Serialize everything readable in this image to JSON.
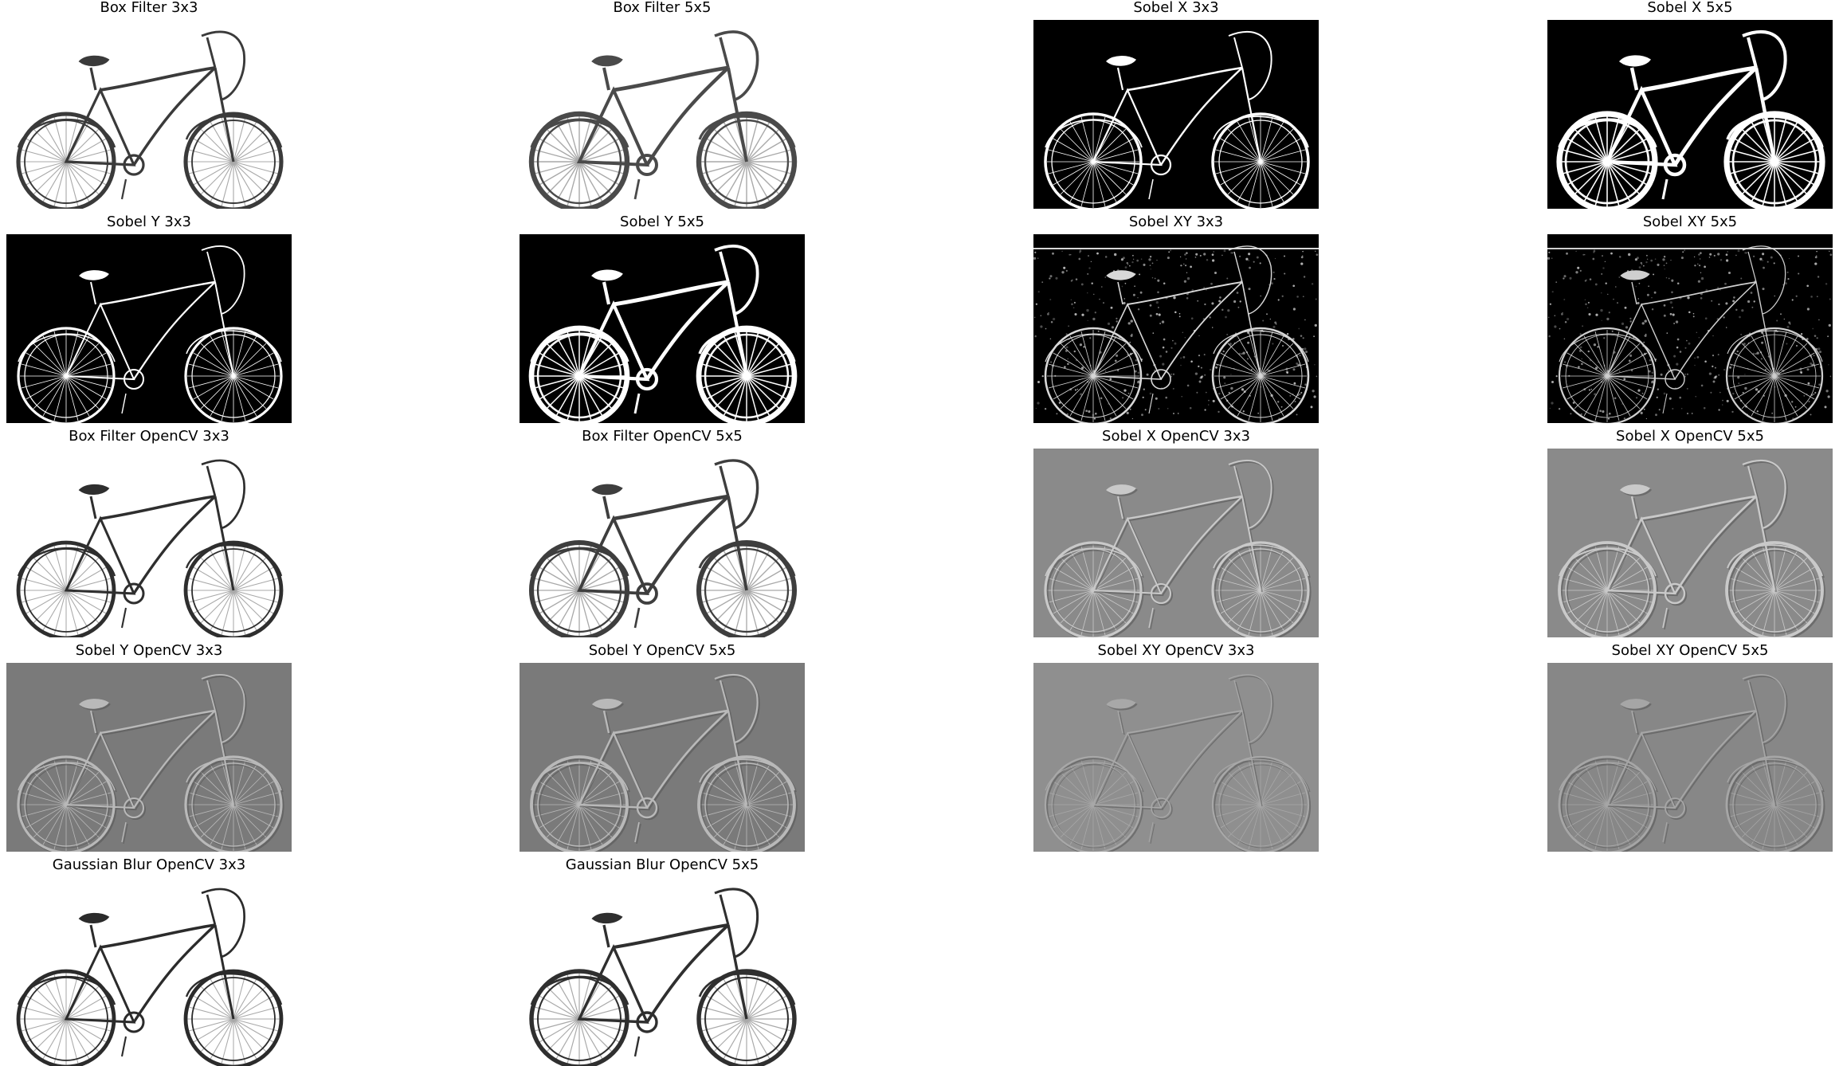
{
  "figure": {
    "background": "#ffffff",
    "panels": [
      {
        "title": "Box Filter 3x3",
        "style": "blur",
        "tone": "#ffffff",
        "stroke": "#3a3a3a",
        "sw": 3.2
      },
      {
        "title": "Box Filter 5x5",
        "style": "blur",
        "tone": "#ffffff",
        "stroke": "#4a4a4a",
        "sw": 4.0
      },
      {
        "title": "Sobel X 3x3",
        "style": "edge",
        "tone": "#000000",
        "stroke": "#ffffff",
        "sw": 2.2
      },
      {
        "title": "Sobel X 5x5",
        "style": "edge",
        "tone": "#000000",
        "stroke": "#ffffff",
        "sw": 4.5
      },
      {
        "title": "Sobel Y 3x3",
        "style": "edge",
        "tone": "#000000",
        "stroke": "#ffffff",
        "sw": 2.0
      },
      {
        "title": "Sobel Y 5x5",
        "style": "edge",
        "tone": "#000000",
        "stroke": "#ffffff",
        "sw": 4.2
      },
      {
        "title": "Sobel XY 3x3",
        "style": "noisy",
        "tone": "#000000",
        "stroke": "#d8d8d8",
        "sw": 1.6
      },
      {
        "title": "Sobel XY 5x5",
        "style": "noisy",
        "tone": "#000000",
        "stroke": "#cfcfcf",
        "sw": 1.4
      },
      {
        "title": "Box Filter OpenCV 3x3",
        "style": "blur",
        "tone": "#ffffff",
        "stroke": "#2e2e2e",
        "sw": 3.0
      },
      {
        "title": "Box Filter OpenCV 5x5",
        "style": "blur",
        "tone": "#ffffff",
        "stroke": "#3e3e3e",
        "sw": 3.8
      },
      {
        "title": "Sobel X OpenCV 3x3",
        "style": "emboss",
        "tone": "#8a8a8a",
        "stroke": "#c9c9c9",
        "sw": 2.0
      },
      {
        "title": "Sobel X OpenCV 5x5",
        "style": "emboss",
        "tone": "#8a8a8a",
        "stroke": "#c9c9c9",
        "sw": 2.4
      },
      {
        "title": "Sobel Y OpenCV 3x3",
        "style": "emboss",
        "tone": "#7a7a7a",
        "stroke": "#b9b9b9",
        "sw": 2.0
      },
      {
        "title": "Sobel Y OpenCV 5x5",
        "style": "emboss",
        "tone": "#7a7a7a",
        "stroke": "#b9b9b9",
        "sw": 2.4
      },
      {
        "title": "Sobel XY OpenCV 3x3",
        "style": "emboss",
        "tone": "#8f8f8f",
        "stroke": "#a8a8a8",
        "sw": 1.4
      },
      {
        "title": "Sobel XY OpenCV 5x5",
        "style": "emboss",
        "tone": "#878787",
        "stroke": "#a6a6a6",
        "sw": 1.8
      },
      {
        "title": "Gaussian Blur OpenCV 3x3",
        "style": "blur",
        "tone": "#ffffff",
        "stroke": "#2b2b2b",
        "sw": 3.0
      },
      {
        "title": "Gaussian Blur OpenCV 5x5",
        "style": "blur",
        "tone": "#ffffff",
        "stroke": "#2f2f2f",
        "sw": 3.4
      }
    ]
  }
}
